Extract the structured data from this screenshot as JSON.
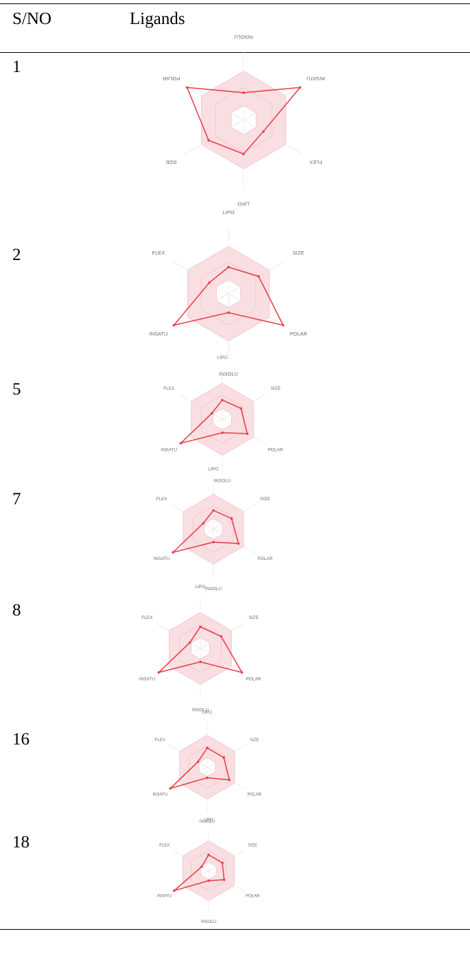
{
  "table": {
    "headers": {
      "sno": "S/NO",
      "ligands": "Ligands"
    }
  },
  "rows": [
    {
      "sno": "1"
    },
    {
      "sno": "2"
    },
    {
      "sno": "5"
    },
    {
      "sno": "7"
    },
    {
      "sno": "8"
    },
    {
      "sno": "16"
    },
    {
      "sno": "18"
    }
  ],
  "chart_data": [
    {
      "type": "radar",
      "axes": [
        "LIPO",
        "SIZE",
        "POLAR",
        "INSOLU",
        "INSATU",
        "FLEX"
      ],
      "values": [
        0.52,
        0.62,
        1.0,
        0.42,
        1.0,
        0.35
      ],
      "rotated_180": true
    },
    {
      "type": "radar",
      "axes": [
        "LIPO",
        "SIZE",
        "POLAR",
        "INSOLU",
        "INSATU",
        "FLEX"
      ],
      "values": [
        0.42,
        0.55,
        1.0,
        0.3,
        1.0,
        0.35
      ]
    },
    {
      "type": "radar",
      "axes": [
        "LIPO",
        "SIZE",
        "POLAR",
        "INSOLU",
        "INSATU",
        "FLEX"
      ],
      "values": [
        0.4,
        0.45,
        0.6,
        0.28,
        1.0,
        0.25
      ]
    },
    {
      "type": "radar",
      "axes": [
        "LIPO",
        "SIZE",
        "POLAR",
        "INSOLU",
        "INSATU",
        "FLEX"
      ],
      "values": [
        0.4,
        0.45,
        0.62,
        0.28,
        1.0,
        0.25
      ]
    },
    {
      "type": "radar",
      "axes": [
        "LIPO",
        "SIZE",
        "POLAR",
        "INSOLU",
        "INSATU",
        "FLEX"
      ],
      "values": [
        0.45,
        0.5,
        1.0,
        0.28,
        1.0,
        0.25
      ]
    },
    {
      "type": "radar",
      "axes": [
        "LIPO",
        "SIZE",
        "POLAR",
        "INSOLU",
        "INSATU",
        "FLEX"
      ],
      "values": [
        0.45,
        0.45,
        0.6,
        0.25,
        1.0,
        0.25
      ]
    },
    {
      "type": "radar",
      "axes": [
        "LIPO",
        "SIZE",
        "POLAR",
        "INSOLU",
        "INSATU",
        "FLEX"
      ],
      "values": [
        0.4,
        0.4,
        0.45,
        0.25,
        1.0,
        0.2
      ]
    }
  ],
  "colors": {
    "line": "#e8424a",
    "band": "#f7d3d8",
    "grid": "#e8e8e8"
  }
}
